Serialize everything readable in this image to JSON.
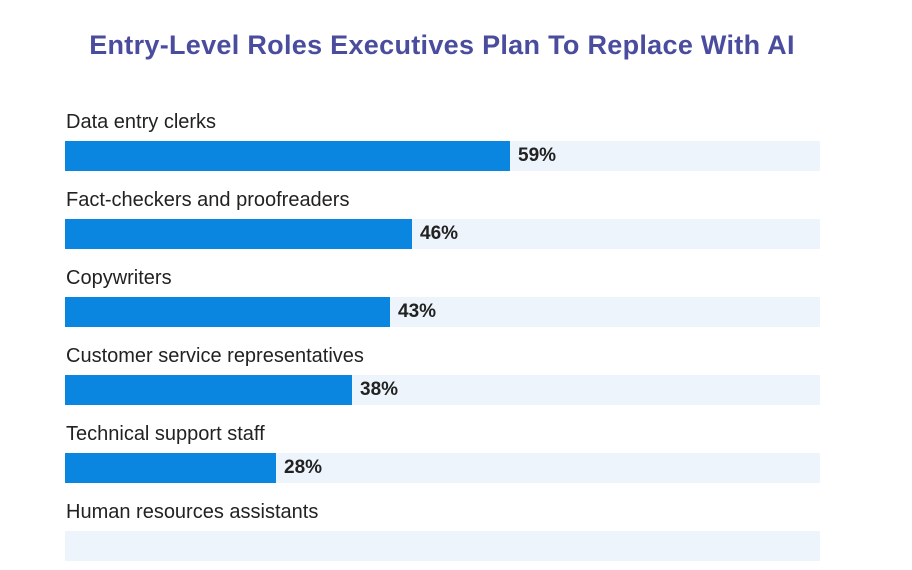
{
  "chart_data": {
    "type": "bar",
    "orientation": "horizontal",
    "title": "Entry-Level Roles Executives Plan To Replace With AI",
    "categories": [
      "Data entry clerks",
      "Fact-checkers and proofreaders",
      "Copywriters",
      "Customer service representatives",
      "Technical support staff",
      "Human resources assistants"
    ],
    "values": [
      59,
      46,
      43,
      38,
      28,
      null
    ],
    "value_labels": [
      "59%",
      "46%",
      "43%",
      "38%",
      "28%",
      ""
    ],
    "unit": "%",
    "xlim": [
      0,
      100
    ],
    "grid": false,
    "legend": "none",
    "colors": {
      "title": "#4a4c9e",
      "bar": "#0a86e0",
      "track": "#eef4fb",
      "text": "#222222"
    }
  }
}
